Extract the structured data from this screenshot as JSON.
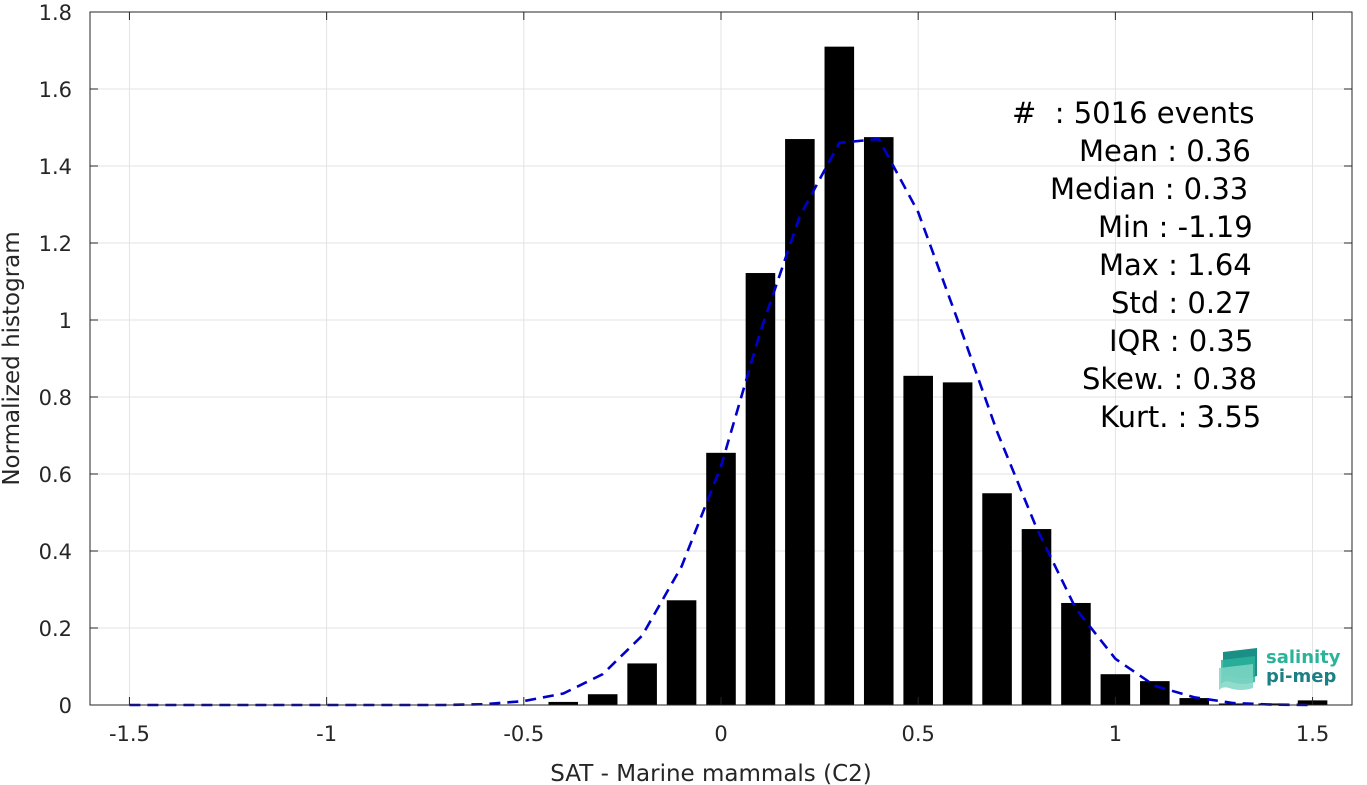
{
  "chart_data": {
    "type": "bar",
    "xlabel": "SAT - Marine mammals (C2)",
    "ylabel": "Normalized histogram",
    "xlim": [
      -1.6,
      1.6
    ],
    "ylim": [
      0,
      1.8
    ],
    "grid": true,
    "xticks": [
      -1.5,
      -1,
      -0.5,
      0,
      0.5,
      1,
      1.5
    ],
    "xtick_labels": [
      "-1.5",
      "-1",
      "-0.5",
      "0",
      "0.5",
      "1",
      "1.5"
    ],
    "yticks": [
      0,
      0.2,
      0.4,
      0.6,
      0.8,
      1,
      1.2,
      1.4,
      1.6,
      1.8
    ],
    "ytick_labels": [
      "0",
      "0.2",
      "0.4",
      "0.6",
      "0.8",
      "1",
      "1.2",
      "1.4",
      "1.6",
      "1.8"
    ],
    "bar_width": 0.075,
    "bars": {
      "x": [
        -0.4,
        -0.3,
        -0.2,
        -0.1,
        0.0,
        0.1,
        0.2,
        0.3,
        0.4,
        0.5,
        0.6,
        0.7,
        0.8,
        0.9,
        1.0,
        1.1,
        1.2,
        1.3,
        1.4,
        1.5
      ],
      "values": [
        0.008,
        0.028,
        0.108,
        0.272,
        0.655,
        1.122,
        1.47,
        1.71,
        1.475,
        0.855,
        0.838,
        0.55,
        0.457,
        0.265,
        0.08,
        0.062,
        0.018,
        0.004,
        0.004,
        0.012
      ],
      "color": "#000000"
    },
    "fit_curve": {
      "style": "dashed",
      "color": "#0000cc",
      "x": [
        -1.5,
        -1.4,
        -1.3,
        -1.2,
        -1.1,
        -1.0,
        -0.9,
        -0.8,
        -0.7,
        -0.6,
        -0.5,
        -0.4,
        -0.3,
        -0.2,
        -0.1,
        0.0,
        0.1,
        0.2,
        0.3,
        0.4,
        0.5,
        0.6,
        0.7,
        0.8,
        0.9,
        1.0,
        1.1,
        1.2,
        1.3,
        1.4,
        1.5
      ],
      "y": [
        0.0,
        0.0,
        0.0,
        0.0,
        0.0,
        0.0,
        0.0,
        0.0,
        0.0,
        0.002,
        0.01,
        0.03,
        0.08,
        0.18,
        0.36,
        0.62,
        0.97,
        1.27,
        1.46,
        1.47,
        1.28,
        1.0,
        0.71,
        0.46,
        0.25,
        0.12,
        0.05,
        0.02,
        0.005,
        0.001,
        0.0
      ]
    },
    "annotations": [
      "#  : 5016 events",
      "Mean : 0.36",
      "Median : 0.33",
      "Min : -1.19",
      "Max : 1.64",
      "Std : 0.27",
      "IQR : 0.35",
      "Skew. : 0.38",
      "Kurt. : 3.55"
    ]
  },
  "logo": {
    "line1": "salinity",
    "line2": "pi-mep"
  }
}
